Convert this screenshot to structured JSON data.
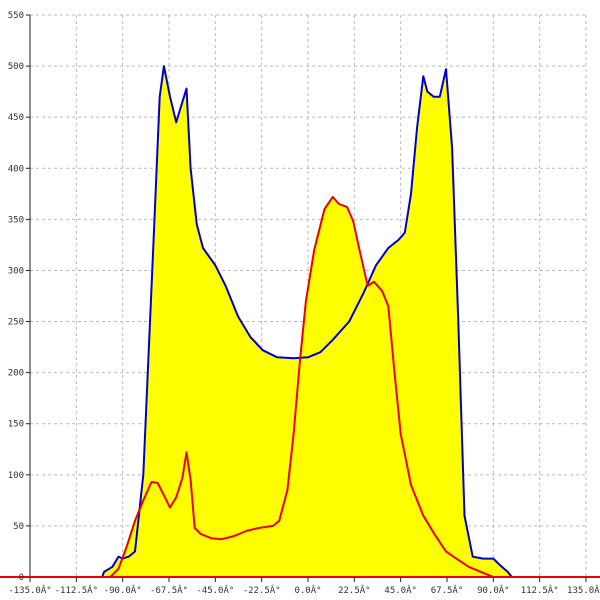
{
  "chart_data": {
    "type": "area",
    "xlim": [
      -135,
      135
    ],
    "ylim": [
      0,
      550
    ],
    "grid": true,
    "x_ticks": [
      -135,
      -112.5,
      -90,
      -67.5,
      -45,
      -22.5,
      0,
      22.5,
      45,
      67.5,
      90,
      112.5,
      135
    ],
    "x_tick_labels": [
      "-135.0Â°",
      "-112.5Â°",
      "-90.0Â°",
      "-67.5Â°",
      "-45.0Â°",
      "-22.5Â°",
      "0.0Â°",
      "22.5Â°",
      "45.0Â°",
      "67.5Â°",
      "90.0Â°",
      "112.5Â°",
      "135.0Â°"
    ],
    "y_ticks": [
      50,
      100,
      150,
      200,
      250,
      300,
      350,
      400,
      450,
      500,
      550
    ],
    "y_tick_labels": [
      "50",
      "100",
      "150",
      "200",
      "250",
      "300",
      "350",
      "400",
      "450",
      "500",
      "550"
    ],
    "colors": {
      "fill": "#ffff00",
      "series_1": "#0000cc",
      "series_2": "#ee0000",
      "grid": "#bbbbbb",
      "axis": "#222222"
    },
    "series": [
      {
        "color": "#0000cc",
        "points": [
          [
            -100,
            0
          ],
          [
            -99,
            5
          ],
          [
            -95,
            10
          ],
          [
            -92,
            20
          ],
          [
            -90,
            18
          ],
          [
            -87,
            20
          ],
          [
            -84,
            25
          ],
          [
            -80,
            100
          ],
          [
            -75,
            330
          ],
          [
            -72,
            470
          ],
          [
            -70,
            500
          ],
          [
            -67,
            470
          ],
          [
            -64,
            445
          ],
          [
            -61,
            465
          ],
          [
            -59,
            478
          ],
          [
            -57,
            400
          ],
          [
            -54,
            345
          ],
          [
            -51,
            322
          ],
          [
            -45,
            305
          ],
          [
            -40,
            285
          ],
          [
            -34,
            255
          ],
          [
            -28,
            235
          ],
          [
            -22,
            222
          ],
          [
            -15,
            215
          ],
          [
            -7,
            214
          ],
          [
            0,
            215
          ],
          [
            6,
            220
          ],
          [
            12,
            232
          ],
          [
            20,
            250
          ],
          [
            27,
            278
          ],
          [
            33,
            305
          ],
          [
            39,
            322
          ],
          [
            44,
            330
          ],
          [
            47,
            337
          ],
          [
            50,
            375
          ],
          [
            53,
            440
          ],
          [
            56,
            490
          ],
          [
            58,
            475
          ],
          [
            61,
            470
          ],
          [
            64,
            470
          ],
          [
            67,
            497
          ],
          [
            70,
            420
          ],
          [
            73,
            250
          ],
          [
            76,
            60
          ],
          [
            80,
            20
          ],
          [
            85,
            18
          ],
          [
            90,
            18
          ],
          [
            93,
            12
          ],
          [
            97,
            5
          ],
          [
            99,
            0
          ]
        ]
      },
      {
        "color": "#ee0000",
        "points": [
          [
            -100,
            0
          ],
          [
            -96,
            0
          ],
          [
            -92,
            8
          ],
          [
            -88,
            30
          ],
          [
            -84,
            55
          ],
          [
            -80,
            75
          ],
          [
            -76,
            93
          ],
          [
            -73,
            92
          ],
          [
            -70,
            80
          ],
          [
            -67,
            68
          ],
          [
            -64,
            78
          ],
          [
            -61,
            97
          ],
          [
            -59,
            122
          ],
          [
            -57,
            95
          ],
          [
            -55,
            48
          ],
          [
            -52,
            42
          ],
          [
            -47,
            38
          ],
          [
            -42,
            37
          ],
          [
            -36,
            40
          ],
          [
            -30,
            45
          ],
          [
            -24,
            48
          ],
          [
            -17,
            50
          ],
          [
            -14,
            55
          ],
          [
            -10,
            85
          ],
          [
            -7,
            140
          ],
          [
            -4,
            210
          ],
          [
            -1,
            270
          ],
          [
            3,
            320
          ],
          [
            8,
            360
          ],
          [
            12,
            372
          ],
          [
            15,
            365
          ],
          [
            19,
            362
          ],
          [
            22,
            348
          ],
          [
            25,
            320
          ],
          [
            29,
            285
          ],
          [
            32,
            289
          ],
          [
            36,
            280
          ],
          [
            39,
            265
          ],
          [
            42,
            200
          ],
          [
            45,
            140
          ],
          [
            50,
            90
          ],
          [
            56,
            60
          ],
          [
            62,
            40
          ],
          [
            67,
            25
          ],
          [
            72,
            18
          ],
          [
            78,
            10
          ],
          [
            84,
            5
          ],
          [
            90,
            0
          ]
        ]
      }
    ]
  }
}
